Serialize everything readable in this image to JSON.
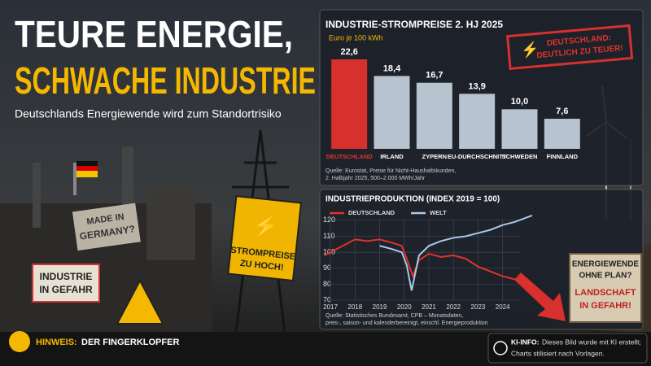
{
  "header": {
    "title": [
      "TEURE ENERGIE,",
      "SCHWACHE INDUSTRIE"
    ],
    "subtitle": "Deutschlands Energiewende wird zum Standortrisiko"
  },
  "chart_data": [
    {
      "type": "bar",
      "title": "INDUSTRIE-STROMPREISE 2. HJ 2025",
      "subtitle": "Euro je 100 kWh",
      "categories": [
        "DEUTSCHLAND",
        "IRLAND",
        "ZYPERN",
        "EU-DURCHSCHNITT",
        "SCHWEDEN",
        "FINNLAND"
      ],
      "values": [
        22.6,
        18.4,
        16.7,
        13.9,
        10.0,
        7.6
      ],
      "value_labels": [
        "22,6",
        "18,4",
        "16,7",
        "13,9",
        "10,0",
        "7,6"
      ],
      "colors": [
        "#d8302c",
        "#b7c4d0",
        "#b7c4d0",
        "#b7c4d0",
        "#b7c4d0",
        "#b7c4d0"
      ],
      "source": [
        "Quelle: Eurostat, Preise für Nicht-Haushaltskunden,",
        "2. Halbjahr 2025, 500–2.000 MWh/Jahr"
      ]
    },
    {
      "type": "line",
      "title": "INDUSTRIEPRODUKTION (INDEX 2019 = 100)",
      "legend": "top-left",
      "grid": true,
      "xlim": [
        2016.7,
        2025.4
      ],
      "xticks": [
        2017,
        2018,
        2019,
        2020,
        2021,
        2022,
        2023,
        2024
      ],
      "ylim": [
        68,
        125
      ],
      "yticks": [
        70,
        80,
        90,
        100,
        110,
        120
      ],
      "series": [
        {
          "name": "DEUTSCHLAND",
          "color": "#e0332c",
          "x": [
            2016.75,
            2017,
            2017.5,
            2018,
            2018.5,
            2019,
            2019.5,
            2019.9,
            2020.1,
            2020.35,
            2020.6,
            2021,
            2021.5,
            2022,
            2022.5,
            2023,
            2023.5,
            2024,
            2024.5,
            2025.2
          ],
          "values": [
            98,
            100,
            104,
            108,
            107,
            108,
            106,
            104,
            96,
            85,
            95,
            99,
            97,
            98,
            96,
            91,
            88,
            85,
            83,
            80
          ]
        },
        {
          "name": "WELT",
          "color": "#a9c8e8",
          "x": [
            2019,
            2019.5,
            2019.9,
            2020.1,
            2020.3,
            2020.6,
            2021,
            2021.5,
            2022,
            2022.5,
            2023,
            2023.5,
            2024,
            2024.5,
            2025.2
          ],
          "values": [
            104,
            102,
            100,
            92,
            76,
            98,
            104,
            107,
            109,
            110,
            112,
            114,
            117,
            119,
            123
          ]
        }
      ],
      "source": [
        "Quelle: Statistisches Bundesamt, CPB – Monatsdaten,",
        "preis-, saison- und kalenderbereinigt, einschl. Energieproduktion"
      ]
    }
  ],
  "stamp": [
    "DEUTSCHLAND:",
    "DEUTLICH ZU TEUER!"
  ],
  "signs": {
    "made_in": [
      "MADE IN",
      "GERMANY?"
    ],
    "industrie": [
      "INDUSTRIE",
      "IN GEFAHR"
    ],
    "strom": [
      "STROMPREISE",
      "ZU HOCH!"
    ],
    "energiewende": [
      "ENERGIEWENDE",
      "OHNE PLAN?",
      "LANDSCHAFT",
      "IN GEFAHR!"
    ]
  },
  "footer": {
    "hint_label": "HINWEIS:",
    "hint_text": "DER FINGERKLOPFER",
    "ki_label": "KI-INFO:",
    "ki_text": [
      "Dieses Bild wurde mit KI erstellt;",
      "Charts stilisiert nach Vorlagen."
    ]
  }
}
